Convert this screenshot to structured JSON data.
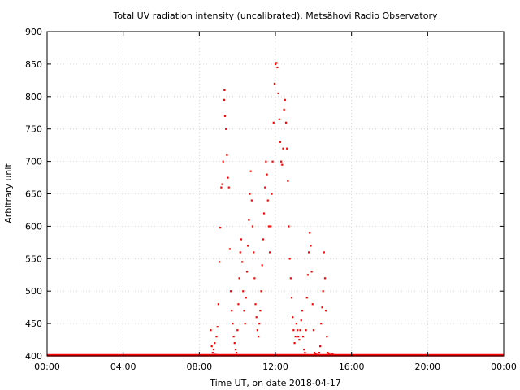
{
  "chart_data": {
    "type": "scatter",
    "title": "Total UV radiation intensity (uncalibrated). Metsähovi Radio Observatory",
    "xlabel": "Time UT, on date 2018-04-17",
    "ylabel": "Arbitrary unit",
    "xlim": [
      0,
      24
    ],
    "ylim": [
      400,
      900
    ],
    "xticks": [
      0,
      4,
      8,
      12,
      16,
      20,
      24
    ],
    "xtick_labels": [
      "00:00",
      "04:00",
      "08:00",
      "12:00",
      "16:00",
      "20:00",
      "00:00"
    ],
    "yticks": [
      400,
      450,
      500,
      550,
      600,
      650,
      700,
      750,
      800,
      850,
      900
    ],
    "ytick_labels": [
      "400",
      "450",
      "500",
      "550",
      "600",
      "650",
      "700",
      "750",
      "800",
      "850",
      "900"
    ],
    "grid": true,
    "marker_color": "#ff0000",
    "baseline": {
      "from": 0,
      "to": 24,
      "value": 401
    },
    "points": [
      [
        8.6,
        440
      ],
      [
        8.65,
        415
      ],
      [
        8.7,
        405
      ],
      [
        8.75,
        410
      ],
      [
        8.8,
        420
      ],
      [
        8.85,
        402
      ],
      [
        8.9,
        430
      ],
      [
        8.95,
        445
      ],
      [
        9.0,
        480
      ],
      [
        9.05,
        545
      ],
      [
        9.1,
        598
      ],
      [
        9.15,
        660
      ],
      [
        9.2,
        665
      ],
      [
        9.25,
        700
      ],
      [
        9.3,
        795
      ],
      [
        9.32,
        810
      ],
      [
        9.35,
        770
      ],
      [
        9.4,
        750
      ],
      [
        9.45,
        710
      ],
      [
        9.5,
        675
      ],
      [
        9.55,
        660
      ],
      [
        9.6,
        565
      ],
      [
        9.65,
        500
      ],
      [
        9.7,
        470
      ],
      [
        9.75,
        450
      ],
      [
        9.8,
        430
      ],
      [
        9.85,
        420
      ],
      [
        9.9,
        410
      ],
      [
        9.95,
        405
      ],
      [
        10.0,
        440
      ],
      [
        10.05,
        480
      ],
      [
        10.1,
        520
      ],
      [
        10.15,
        560
      ],
      [
        10.2,
        580
      ],
      [
        10.25,
        545
      ],
      [
        10.3,
        500
      ],
      [
        10.35,
        470
      ],
      [
        10.4,
        450
      ],
      [
        10.45,
        490
      ],
      [
        10.5,
        530
      ],
      [
        10.55,
        570
      ],
      [
        10.6,
        610
      ],
      [
        10.65,
        650
      ],
      [
        10.7,
        685
      ],
      [
        10.75,
        640
      ],
      [
        10.8,
        600
      ],
      [
        10.85,
        560
      ],
      [
        10.9,
        520
      ],
      [
        10.95,
        480
      ],
      [
        11.0,
        460
      ],
      [
        11.05,
        440
      ],
      [
        11.1,
        430
      ],
      [
        11.15,
        450
      ],
      [
        11.2,
        470
      ],
      [
        11.25,
        500
      ],
      [
        11.3,
        540
      ],
      [
        11.35,
        580
      ],
      [
        11.4,
        620
      ],
      [
        11.45,
        660
      ],
      [
        11.5,
        700
      ],
      [
        11.55,
        680
      ],
      [
        11.6,
        640
      ],
      [
        11.65,
        600
      ],
      [
        11.7,
        560
      ],
      [
        11.75,
        600
      ],
      [
        11.8,
        650
      ],
      [
        11.85,
        700
      ],
      [
        11.9,
        760
      ],
      [
        11.95,
        820
      ],
      [
        12.0,
        850
      ],
      [
        12.05,
        852
      ],
      [
        12.1,
        845
      ],
      [
        12.15,
        805
      ],
      [
        12.2,
        765
      ],
      [
        12.25,
        730
      ],
      [
        12.3,
        700
      ],
      [
        12.35,
        695
      ],
      [
        12.4,
        720
      ],
      [
        12.45,
        780
      ],
      [
        12.5,
        795
      ],
      [
        12.55,
        760
      ],
      [
        12.6,
        720
      ],
      [
        12.65,
        670
      ],
      [
        12.7,
        600
      ],
      [
        12.75,
        550
      ],
      [
        12.8,
        520
      ],
      [
        12.85,
        490
      ],
      [
        12.9,
        460
      ],
      [
        12.95,
        440
      ],
      [
        13.0,
        420
      ],
      [
        13.05,
        430
      ],
      [
        13.1,
        450
      ],
      [
        13.15,
        440
      ],
      [
        13.2,
        430
      ],
      [
        13.25,
        425
      ],
      [
        13.3,
        440
      ],
      [
        13.35,
        455
      ],
      [
        13.4,
        470
      ],
      [
        13.45,
        430
      ],
      [
        13.5,
        410
      ],
      [
        13.55,
        405
      ],
      [
        13.6,
        440
      ],
      [
        13.65,
        490
      ],
      [
        13.7,
        525
      ],
      [
        13.75,
        560
      ],
      [
        13.8,
        590
      ],
      [
        13.85,
        570
      ],
      [
        13.9,
        530
      ],
      [
        13.95,
        480
      ],
      [
        14.0,
        440
      ],
      [
        14.05,
        405
      ],
      [
        14.1,
        403
      ],
      [
        14.2,
        402
      ],
      [
        14.3,
        405
      ],
      [
        14.35,
        415
      ],
      [
        14.4,
        450
      ],
      [
        14.45,
        475
      ],
      [
        14.5,
        500
      ],
      [
        14.55,
        560
      ],
      [
        14.6,
        520
      ],
      [
        14.65,
        470
      ],
      [
        14.7,
        430
      ],
      [
        14.75,
        405
      ],
      [
        14.8,
        403
      ],
      [
        14.9,
        402
      ],
      [
        15.0,
        403
      ]
    ]
  }
}
